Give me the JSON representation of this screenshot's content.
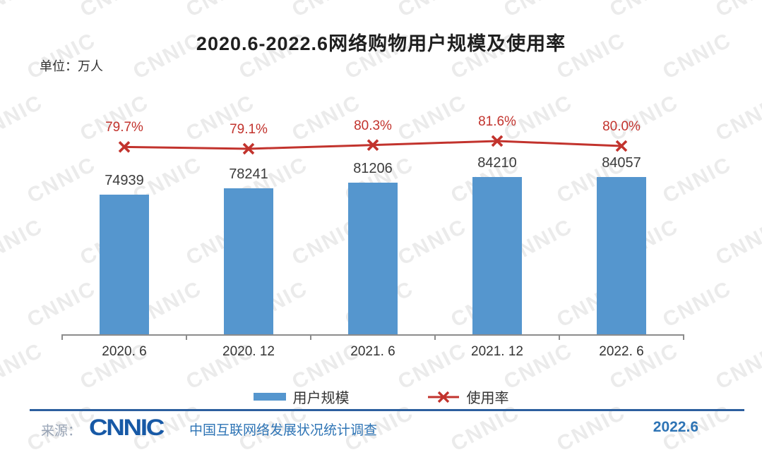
{
  "title": "2020.6-2022.6网络购物用户规模及使用率",
  "unit_label": "单位：万人",
  "watermark_text": "CNNIC",
  "chart_data": {
    "type": "bar",
    "title": "2020.6-2022.6网络购物用户规模及使用率",
    "unit": "万人",
    "categories": [
      "2020.6",
      "2020.12",
      "2021.6",
      "2021.12",
      "2022.6"
    ],
    "tick_labels": [
      "2020. 6",
      "2020. 12",
      "2021. 6",
      "2021. 12",
      "2022. 6"
    ],
    "series": [
      {
        "name": "用户规模",
        "type": "bar",
        "unit": "万人",
        "values": [
          74939,
          78241,
          81206,
          84210,
          84057
        ],
        "color": "#5596CE"
      },
      {
        "name": "使用率",
        "type": "line",
        "unit": "%",
        "values": [
          79.7,
          79.1,
          80.3,
          81.6,
          80.0
        ],
        "color": "#C2332D"
      }
    ],
    "bar_axis": {
      "min": 0
    },
    "grid": false,
    "legend_position": "bottom"
  },
  "legend": {
    "bar_label": "用户规模",
    "line_label": "使用率"
  },
  "footer": {
    "source_prefix": "来源：",
    "logo_text": "CNNIC",
    "survey_text": "中国互联网络发展状况统计调查",
    "date_text": "2022.6"
  },
  "colors": {
    "bar": "#5596CE",
    "line": "#C2332D",
    "axis": "#8C8C8C",
    "footer_blue": "#2E74B5",
    "logo_blue": "#1759A6",
    "footer_rule": "#2C5F9E"
  }
}
